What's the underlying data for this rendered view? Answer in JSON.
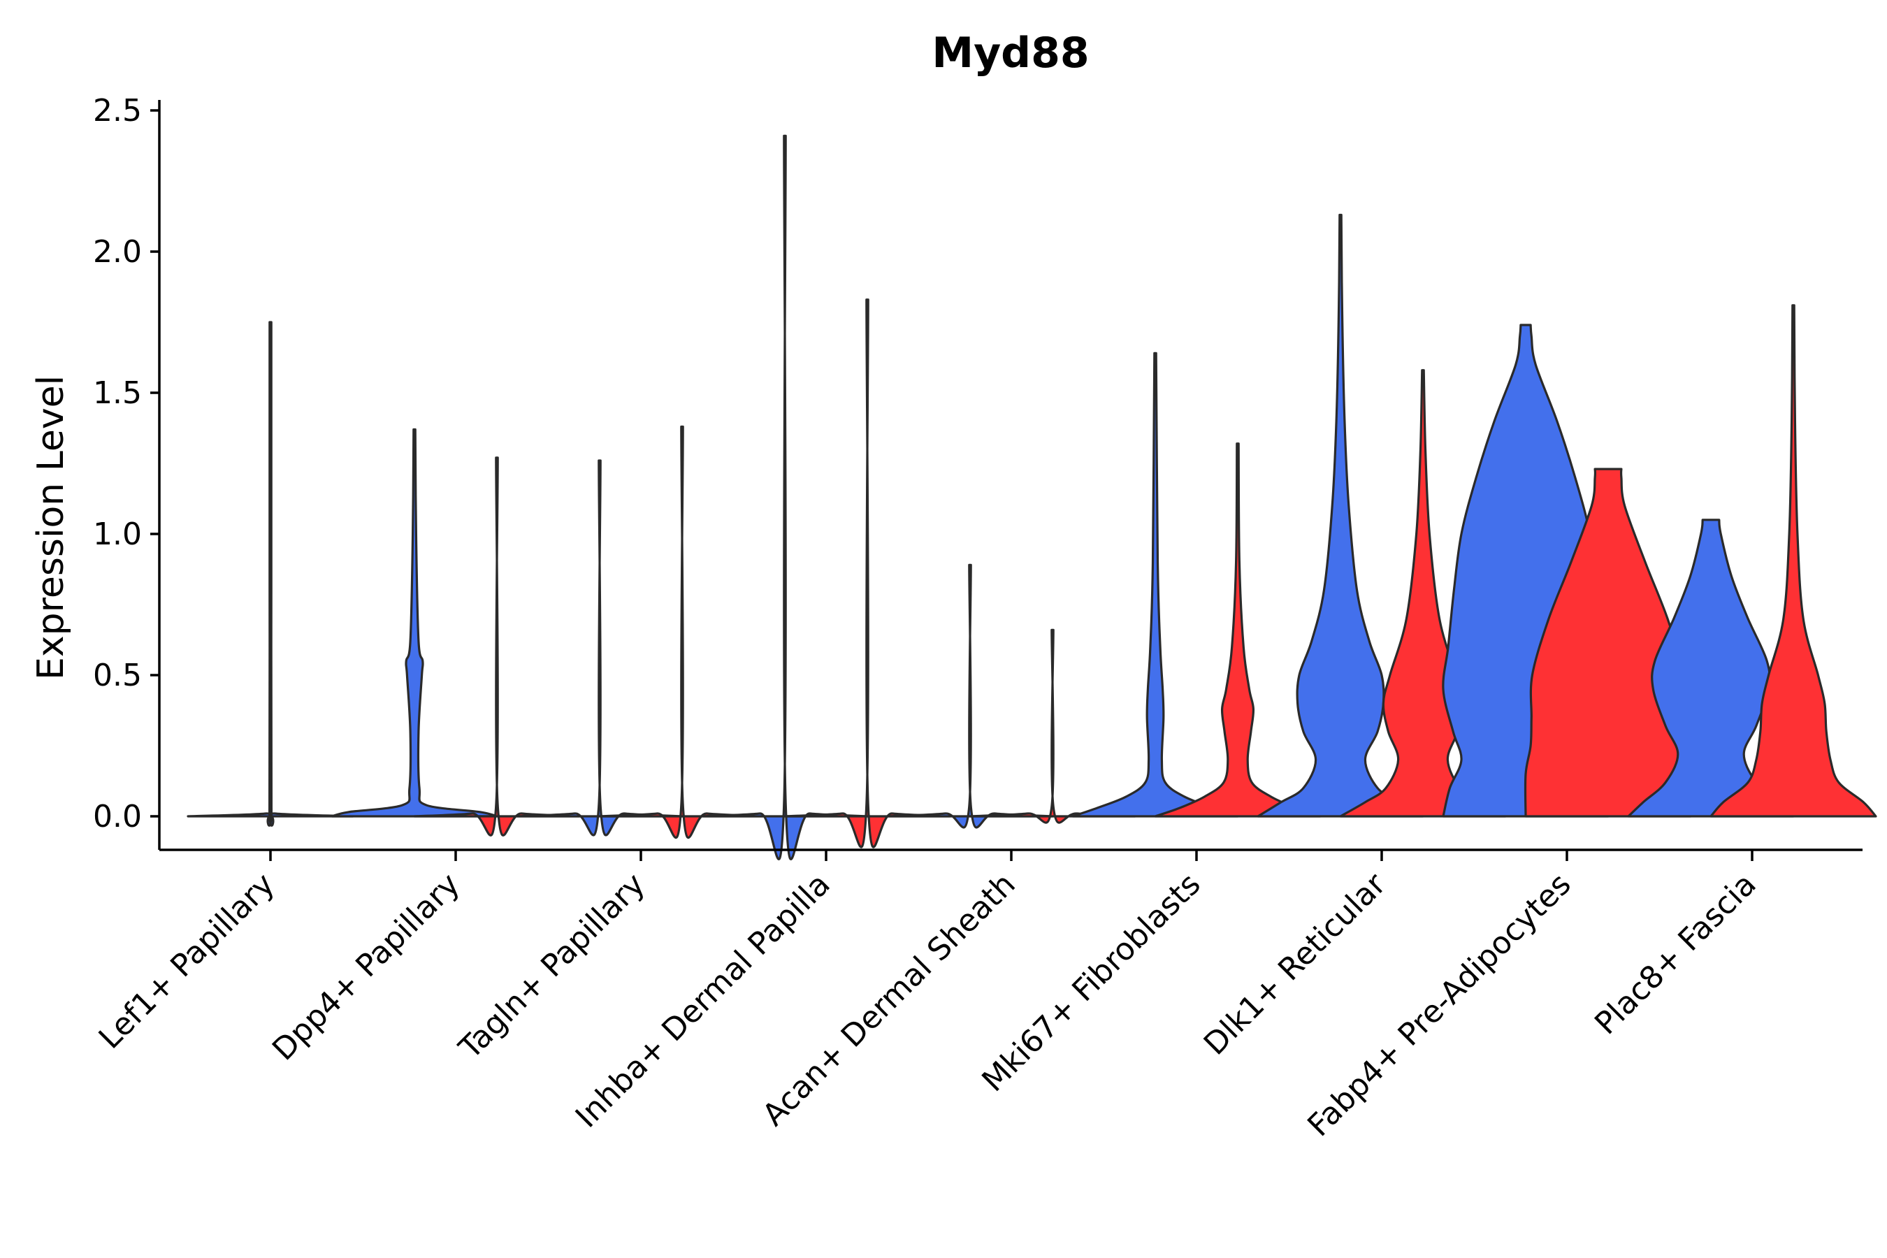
{
  "chart_data": {
    "type": "violin",
    "title": "Myd88",
    "xlabel": "",
    "ylabel": "Expression Level",
    "ylim": [
      -0.12,
      2.55
    ],
    "yticks": [
      "0.0",
      "0.5",
      "1.0",
      "1.5",
      "2.0",
      "2.5"
    ],
    "ytick_values": [
      0,
      0.5,
      1.0,
      1.5,
      2.0,
      2.5
    ],
    "grid": false,
    "legend": "none",
    "colors": {
      "blue": "#4370ec",
      "red": "#fe3134"
    },
    "categories": [
      "Lef1+ Papillary",
      "Dpp4+ Papillary",
      "Tagln+ Papillary",
      "Inhba+ Dermal Papilla",
      "Acan+ Dermal Sheath",
      "Mki67+ Fibroblasts",
      "Dlk1+ Reticular",
      "Fabp4+ Pre-Adipocytes",
      "Plac8+ Fascia"
    ],
    "groups": [
      {
        "category": "Lef1+ Papillary",
        "violins": [
          {
            "color": "blue",
            "max": 1.75,
            "profile": [
              [
                0,
                1
              ],
              [
                0.01,
                0.05
              ],
              [
                0.03,
                0.012
              ],
              [
                0.8,
                0.01
              ],
              [
                1.75,
                0.01
              ]
            ]
          }
        ]
      },
      {
        "category": "Dpp4+ Papillary",
        "violins": [
          {
            "color": "blue",
            "max": 1.37,
            "profile": [
              [
                0,
                1
              ],
              [
                0.015,
                0.8
              ],
              [
                0.04,
                0.14
              ],
              [
                0.1,
                0.06
              ],
              [
                0.3,
                0.05
              ],
              [
                0.5,
                0.09
              ],
              [
                0.55,
                0.1
              ],
              [
                0.62,
                0.05
              ],
              [
                1.0,
                0.02
              ],
              [
                1.37,
                0.01
              ]
            ]
          },
          {
            "color": "red",
            "max": 1.27,
            "profile": [
              [
                0,
                1
              ],
              [
                0.01,
                0.3
              ],
              [
                0.03,
                0.012
              ],
              [
                1.27,
                0.01
              ]
            ]
          }
        ]
      },
      {
        "category": "Tagln+ Papillary",
        "violins": [
          {
            "color": "blue",
            "max": 1.26,
            "profile": [
              [
                0,
                1
              ],
              [
                0.01,
                0.3
              ],
              [
                0.03,
                0.012
              ],
              [
                1.26,
                0.01
              ]
            ]
          },
          {
            "color": "red",
            "max": 1.38,
            "profile": [
              [
                0,
                1
              ],
              [
                0.01,
                0.3
              ],
              [
                0.03,
                0.012
              ],
              [
                1.38,
                0.01
              ]
            ]
          }
        ]
      },
      {
        "category": "Inhba+ Dermal Papilla",
        "violins": [
          {
            "color": "blue",
            "max": 2.41,
            "profile": [
              [
                0,
                1
              ],
              [
                0.01,
                0.3
              ],
              [
                0.03,
                0.012
              ],
              [
                2.41,
                0.01
              ]
            ]
          },
          {
            "color": "red",
            "max": 1.83,
            "profile": [
              [
                0,
                1
              ],
              [
                0.01,
                0.3
              ],
              [
                0.03,
                0.012
              ],
              [
                1.83,
                0.01
              ]
            ]
          }
        ]
      },
      {
        "category": "Acan+ Dermal Sheath",
        "violins": [
          {
            "color": "blue",
            "max": 0.89,
            "profile": [
              [
                0,
                1
              ],
              [
                0.01,
                0.3
              ],
              [
                0.03,
                0.012
              ],
              [
                0.89,
                0.01
              ]
            ]
          },
          {
            "color": "red",
            "max": 0.66,
            "profile": [
              [
                0,
                1
              ],
              [
                0.01,
                0.3
              ],
              [
                0.03,
                0.012
              ],
              [
                0.66,
                0.01
              ]
            ]
          }
        ]
      },
      {
        "category": "Mki67+ Fibroblasts",
        "violins": [
          {
            "color": "blue",
            "max": 1.64,
            "profile": [
              [
                0,
                1
              ],
              [
                0.03,
                0.7
              ],
              [
                0.07,
                0.35
              ],
              [
                0.12,
                0.12
              ],
              [
                0.2,
                0.08
              ],
              [
                0.35,
                0.1
              ],
              [
                0.45,
                0.09
              ],
              [
                0.6,
                0.06
              ],
              [
                0.9,
                0.03
              ],
              [
                1.64,
                0.01
              ]
            ]
          },
          {
            "color": "red",
            "max": 1.32,
            "profile": [
              [
                0,
                1
              ],
              [
                0.03,
                0.7
              ],
              [
                0.07,
                0.4
              ],
              [
                0.12,
                0.17
              ],
              [
                0.2,
                0.12
              ],
              [
                0.3,
                0.16
              ],
              [
                0.38,
                0.19
              ],
              [
                0.45,
                0.14
              ],
              [
                0.6,
                0.07
              ],
              [
                0.9,
                0.02
              ],
              [
                1.32,
                0.01
              ]
            ]
          }
        ]
      },
      {
        "category": "Dlk1+ Reticular",
        "violins": [
          {
            "color": "blue",
            "max": 2.13,
            "profile": [
              [
                0,
                1
              ],
              [
                0.05,
                0.72
              ],
              [
                0.1,
                0.45
              ],
              [
                0.2,
                0.3
              ],
              [
                0.3,
                0.45
              ],
              [
                0.4,
                0.52
              ],
              [
                0.5,
                0.5
              ],
              [
                0.62,
                0.35
              ],
              [
                0.8,
                0.2
              ],
              [
                1.1,
                0.1
              ],
              [
                1.4,
                0.05
              ],
              [
                1.8,
                0.02
              ],
              [
                2.13,
                0.01
              ]
            ]
          },
          {
            "color": "red",
            "max": 1.58,
            "profile": [
              [
                0,
                1
              ],
              [
                0.05,
                0.7
              ],
              [
                0.1,
                0.45
              ],
              [
                0.2,
                0.3
              ],
              [
                0.3,
                0.42
              ],
              [
                0.4,
                0.48
              ],
              [
                0.5,
                0.4
              ],
              [
                0.7,
                0.2
              ],
              [
                1.0,
                0.08
              ],
              [
                1.3,
                0.03
              ],
              [
                1.58,
                0.01
              ]
            ]
          }
        ]
      },
      {
        "category": "Fabp4+ Pre-Adipocytes",
        "violins": [
          {
            "color": "blue",
            "max": 1.74,
            "profile": [
              [
                0,
                1
              ],
              [
                0.1,
                0.92
              ],
              [
                0.2,
                0.78
              ],
              [
                0.3,
                0.88
              ],
              [
                0.45,
                1.0
              ],
              [
                0.6,
                0.94
              ],
              [
                0.8,
                0.87
              ],
              [
                1.0,
                0.78
              ],
              [
                1.2,
                0.6
              ],
              [
                1.4,
                0.38
              ],
              [
                1.6,
                0.12
              ],
              [
                1.7,
                0.07
              ],
              [
                1.74,
                0.06
              ]
            ]
          },
          {
            "color": "red",
            "max": 1.23,
            "profile": [
              [
                0,
                1
              ],
              [
                0.15,
                1.0
              ],
              [
                0.25,
                0.94
              ],
              [
                0.35,
                0.93
              ],
              [
                0.5,
                0.92
              ],
              [
                0.7,
                0.72
              ],
              [
                0.9,
                0.45
              ],
              [
                1.1,
                0.2
              ],
              [
                1.2,
                0.16
              ],
              [
                1.23,
                0.16
              ]
            ]
          }
        ]
      },
      {
        "category": "Plac8+ Fascia",
        "violins": [
          {
            "color": "blue",
            "max": 1.05,
            "profile": [
              [
                0,
                1
              ],
              [
                0.05,
                0.82
              ],
              [
                0.12,
                0.55
              ],
              [
                0.22,
                0.4
              ],
              [
                0.32,
                0.55
              ],
              [
                0.45,
                0.7
              ],
              [
                0.55,
                0.68
              ],
              [
                0.7,
                0.45
              ],
              [
                0.85,
                0.25
              ],
              [
                1.0,
                0.12
              ],
              [
                1.05,
                0.1
              ]
            ]
          },
          {
            "color": "red",
            "max": 1.81,
            "profile": [
              [
                0,
                1
              ],
              [
                0.05,
                0.85
              ],
              [
                0.12,
                0.55
              ],
              [
                0.2,
                0.45
              ],
              [
                0.3,
                0.4
              ],
              [
                0.4,
                0.38
              ],
              [
                0.5,
                0.3
              ],
              [
                0.7,
                0.12
              ],
              [
                1.0,
                0.05
              ],
              [
                1.4,
                0.02
              ],
              [
                1.81,
                0.01
              ]
            ]
          }
        ]
      }
    ]
  }
}
